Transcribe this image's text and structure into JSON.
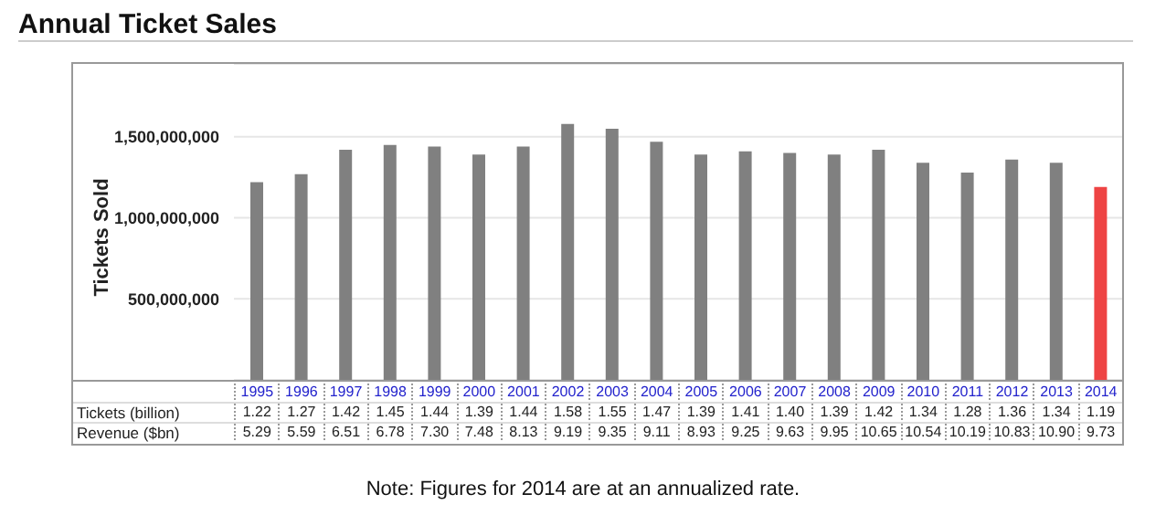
{
  "chart_data": {
    "type": "bar",
    "title": "Annual Ticket Sales",
    "ylabel": "Tickets Sold",
    "categories": [
      "1995",
      "1996",
      "1997",
      "1998",
      "1999",
      "2000",
      "2001",
      "2002",
      "2003",
      "2004",
      "2005",
      "2006",
      "2007",
      "2008",
      "2009",
      "2010",
      "2011",
      "2012",
      "2013",
      "2014"
    ],
    "series": [
      {
        "colors": [
          "#808080",
          "#808080",
          "#808080",
          "#808080",
          "#808080",
          "#808080",
          "#808080",
          "#808080",
          "#808080",
          "#808080",
          "#808080",
          "#808080",
          "#808080",
          "#808080",
          "#808080",
          "#808080",
          "#808080",
          "#808080",
          "#808080",
          "#ee4444"
        ],
        "values": [
          1220000000,
          1270000000,
          1420000000,
          1450000000,
          1440000000,
          1390000000,
          1440000000,
          1580000000,
          1550000000,
          1470000000,
          1390000000,
          1410000000,
          1400000000,
          1390000000,
          1420000000,
          1340000000,
          1280000000,
          1360000000,
          1340000000,
          1190000000
        ]
      }
    ],
    "ylim": [
      0,
      1950000000
    ],
    "yticks": [
      {
        "value": 500000000,
        "label": "500,000,000"
      },
      {
        "value": 1000000000,
        "label": "1,000,000,000"
      },
      {
        "value": 1500000000,
        "label": "1,500,000,000"
      }
    ],
    "grid": "y",
    "annotations": [
      "Tickets (billion)",
      "1.22",
      "1.27",
      "1.42",
      "1.45",
      "1.44",
      "1.39",
      "1.44",
      "1.58",
      "1.55",
      "1.47",
      "1.39",
      "1.41",
      "1.40",
      "1.39",
      "1.42",
      "1.34",
      "1.28",
      "1.36",
      "1.34",
      "1.19",
      "Revenue ($bn)",
      "5.29",
      "5.59",
      "6.51",
      "6.78",
      "7.30",
      "7.48",
      "8.13",
      "9.19",
      "9.35",
      "9.11",
      "8.93",
      "9.25",
      "9.63",
      "9.95",
      "10.65",
      "10.54",
      "10.19",
      "10.83",
      "10.90",
      "9.73",
      "Note: Figures for 2014 are at an annualized rate."
    ]
  }
}
